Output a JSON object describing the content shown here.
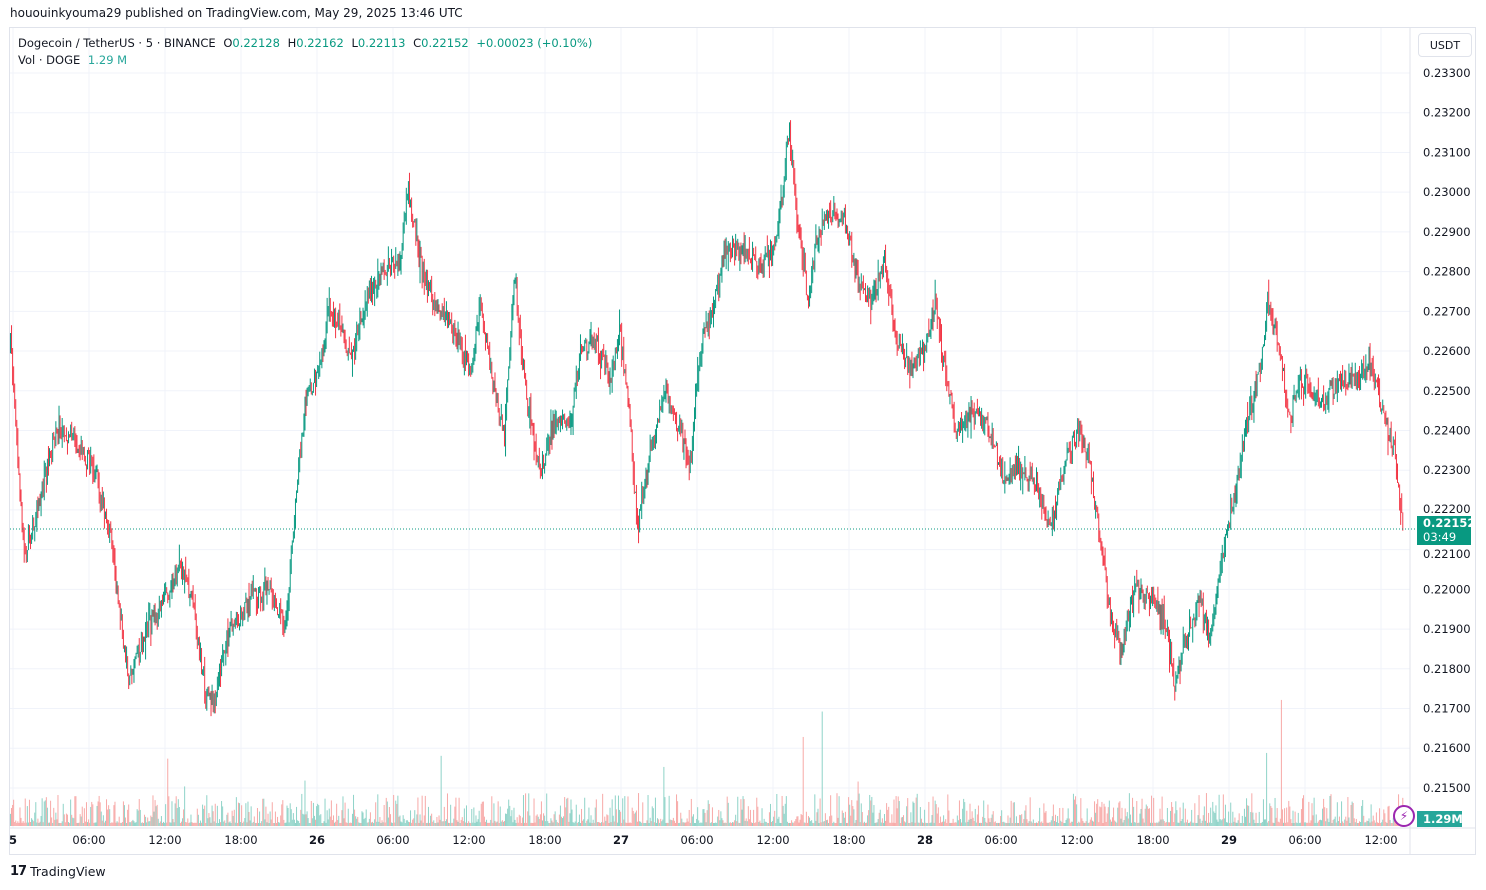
{
  "published": "hououinkyouma29 published on TradingView.com, May 29, 2025 13:46 UTC",
  "legend": {
    "symbol": "Dogecoin / TetherUS · 5 · BINANCE",
    "o_label": "O",
    "o": "0.22128",
    "h_label": "H",
    "h": "0.22162",
    "l_label": "L",
    "l": "0.22113",
    "c_label": "C",
    "c": "0.22152",
    "change": "+0.00023 (+0.10%)",
    "vol_label": "Vol · DOGE",
    "vol": "1.29 M"
  },
  "currency_button": "USDT",
  "last_price": {
    "price": "0.22152",
    "countdown": "03:49"
  },
  "volume_label": "1.29M",
  "brand": "TradingView",
  "colors": {
    "up": "#089981",
    "down": "#f23645",
    "vol_up": "#8fd3c8",
    "vol_down": "#f7a9a7",
    "grid": "#f0f3fa"
  },
  "chart_data": {
    "type": "candlestick",
    "interval_minutes": 5,
    "price_ticks": [
      "0.23300",
      "0.23200",
      "0.23100",
      "0.23000",
      "0.22900",
      "0.22800",
      "0.22700",
      "0.22600",
      "0.22500",
      "0.22400",
      "0.22300",
      "0.22200",
      "0.22100",
      "0.22000",
      "0.21900",
      "0.21800",
      "0.21700",
      "0.21600",
      "0.21500"
    ],
    "ylim": [
      0.2145,
      0.2335
    ],
    "time_ticks": [
      {
        "h": 0,
        "label": "5"
      },
      {
        "h": 6,
        "label": "06:00"
      },
      {
        "h": 12,
        "label": "12:00"
      },
      {
        "h": 18,
        "label": "18:00"
      },
      {
        "h": 24,
        "label": "26"
      },
      {
        "h": 30,
        "label": "06:00"
      },
      {
        "h": 36,
        "label": "12:00"
      },
      {
        "h": 42,
        "label": "18:00"
      },
      {
        "h": 48,
        "label": "27"
      },
      {
        "h": 54,
        "label": "06:00"
      },
      {
        "h": 60,
        "label": "12:00"
      },
      {
        "h": 66,
        "label": "18:00"
      },
      {
        "h": 72,
        "label": "28"
      },
      {
        "h": 78,
        "label": "06:00"
      },
      {
        "h": 84,
        "label": "12:00"
      },
      {
        "h": 90,
        "label": "18:00"
      },
      {
        "h": 96,
        "label": "29"
      },
      {
        "h": 102,
        "label": "06:00"
      },
      {
        "h": 108,
        "label": "12:00"
      }
    ],
    "price_path_hours_vs_close": [
      [
        -0.2,
        0.22628
      ],
      [
        0.9,
        0.22074
      ],
      [
        2.1,
        0.22225
      ],
      [
        3.5,
        0.22414
      ],
      [
        4.9,
        0.22376
      ],
      [
        6.5,
        0.223
      ],
      [
        7.7,
        0.22124
      ],
      [
        8.4,
        0.21948
      ],
      [
        9.2,
        0.21772
      ],
      [
        10.8,
        0.21923
      ],
      [
        12.0,
        0.21973
      ],
      [
        13.2,
        0.22074
      ],
      [
        14.0,
        0.21998
      ],
      [
        15.2,
        0.21746
      ],
      [
        15.9,
        0.21721
      ],
      [
        17.1,
        0.21897
      ],
      [
        18.7,
        0.21973
      ],
      [
        20.3,
        0.21998
      ],
      [
        21.5,
        0.21897
      ],
      [
        22.3,
        0.22225
      ],
      [
        23.1,
        0.22477
      ],
      [
        24.2,
        0.22552
      ],
      [
        25.0,
        0.22728
      ],
      [
        26.6,
        0.22577
      ],
      [
        27.8,
        0.22728
      ],
      [
        29.4,
        0.22804
      ],
      [
        30.6,
        0.22829
      ],
      [
        31.2,
        0.23005
      ],
      [
        32.1,
        0.22829
      ],
      [
        33.3,
        0.22703
      ],
      [
        34.9,
        0.22653
      ],
      [
        36.1,
        0.22552
      ],
      [
        36.9,
        0.22728
      ],
      [
        38.1,
        0.22477
      ],
      [
        38.8,
        0.22376
      ],
      [
        39.6,
        0.22804
      ],
      [
        40.4,
        0.22502
      ],
      [
        41.6,
        0.223
      ],
      [
        42.8,
        0.22426
      ],
      [
        44.0,
        0.22426
      ],
      [
        44.8,
        0.22603
      ],
      [
        45.9,
        0.22628
      ],
      [
        47.1,
        0.22527
      ],
      [
        47.9,
        0.22653
      ],
      [
        48.7,
        0.22426
      ],
      [
        49.3,
        0.22149
      ],
      [
        50.3,
        0.22351
      ],
      [
        51.5,
        0.22502
      ],
      [
        52.7,
        0.22401
      ],
      [
        53.4,
        0.223
      ],
      [
        54.2,
        0.22603
      ],
      [
        55.4,
        0.22728
      ],
      [
        56.2,
        0.22854
      ],
      [
        57.4,
        0.22854
      ],
      [
        59.0,
        0.22804
      ],
      [
        60.2,
        0.22879
      ],
      [
        61.3,
        0.23156
      ],
      [
        62.1,
        0.22879
      ],
      [
        62.8,
        0.22728
      ],
      [
        63.3,
        0.22854
      ],
      [
        64.5,
        0.22955
      ],
      [
        65.7,
        0.2293
      ],
      [
        66.5,
        0.22804
      ],
      [
        67.7,
        0.22728
      ],
      [
        68.8,
        0.22829
      ],
      [
        69.6,
        0.22653
      ],
      [
        70.8,
        0.22552
      ],
      [
        72.0,
        0.22603
      ],
      [
        72.8,
        0.22728
      ],
      [
        73.6,
        0.22552
      ],
      [
        74.4,
        0.22401
      ],
      [
        75.9,
        0.22451
      ],
      [
        77.1,
        0.22401
      ],
      [
        78.3,
        0.22275
      ],
      [
        79.5,
        0.223
      ],
      [
        80.7,
        0.22275
      ],
      [
        81.9,
        0.22149
      ],
      [
        83.1,
        0.22326
      ],
      [
        84.2,
        0.22401
      ],
      [
        85.0,
        0.22326
      ],
      [
        85.8,
        0.22124
      ],
      [
        86.6,
        0.21948
      ],
      [
        87.4,
        0.21847
      ],
      [
        88.6,
        0.21998
      ],
      [
        89.8,
        0.21973
      ],
      [
        91.0,
        0.21923
      ],
      [
        91.7,
        0.21746
      ],
      [
        92.5,
        0.21872
      ],
      [
        93.7,
        0.21973
      ],
      [
        94.5,
        0.21872
      ],
      [
        95.7,
        0.22124
      ],
      [
        96.5,
        0.2225
      ],
      [
        97.3,
        0.22401
      ],
      [
        98.3,
        0.22527
      ],
      [
        99.1,
        0.22728
      ],
      [
        100.0,
        0.22603
      ],
      [
        100.8,
        0.22426
      ],
      [
        101.6,
        0.22527
      ],
      [
        103.2,
        0.22477
      ],
      [
        104.8,
        0.22527
      ],
      [
        106.3,
        0.22527
      ],
      [
        107.1,
        0.22577
      ],
      [
        108.3,
        0.22426
      ],
      [
        109.1,
        0.22351
      ],
      [
        109.7,
        0.22152
      ]
    ],
    "last_close": 0.22152
  }
}
